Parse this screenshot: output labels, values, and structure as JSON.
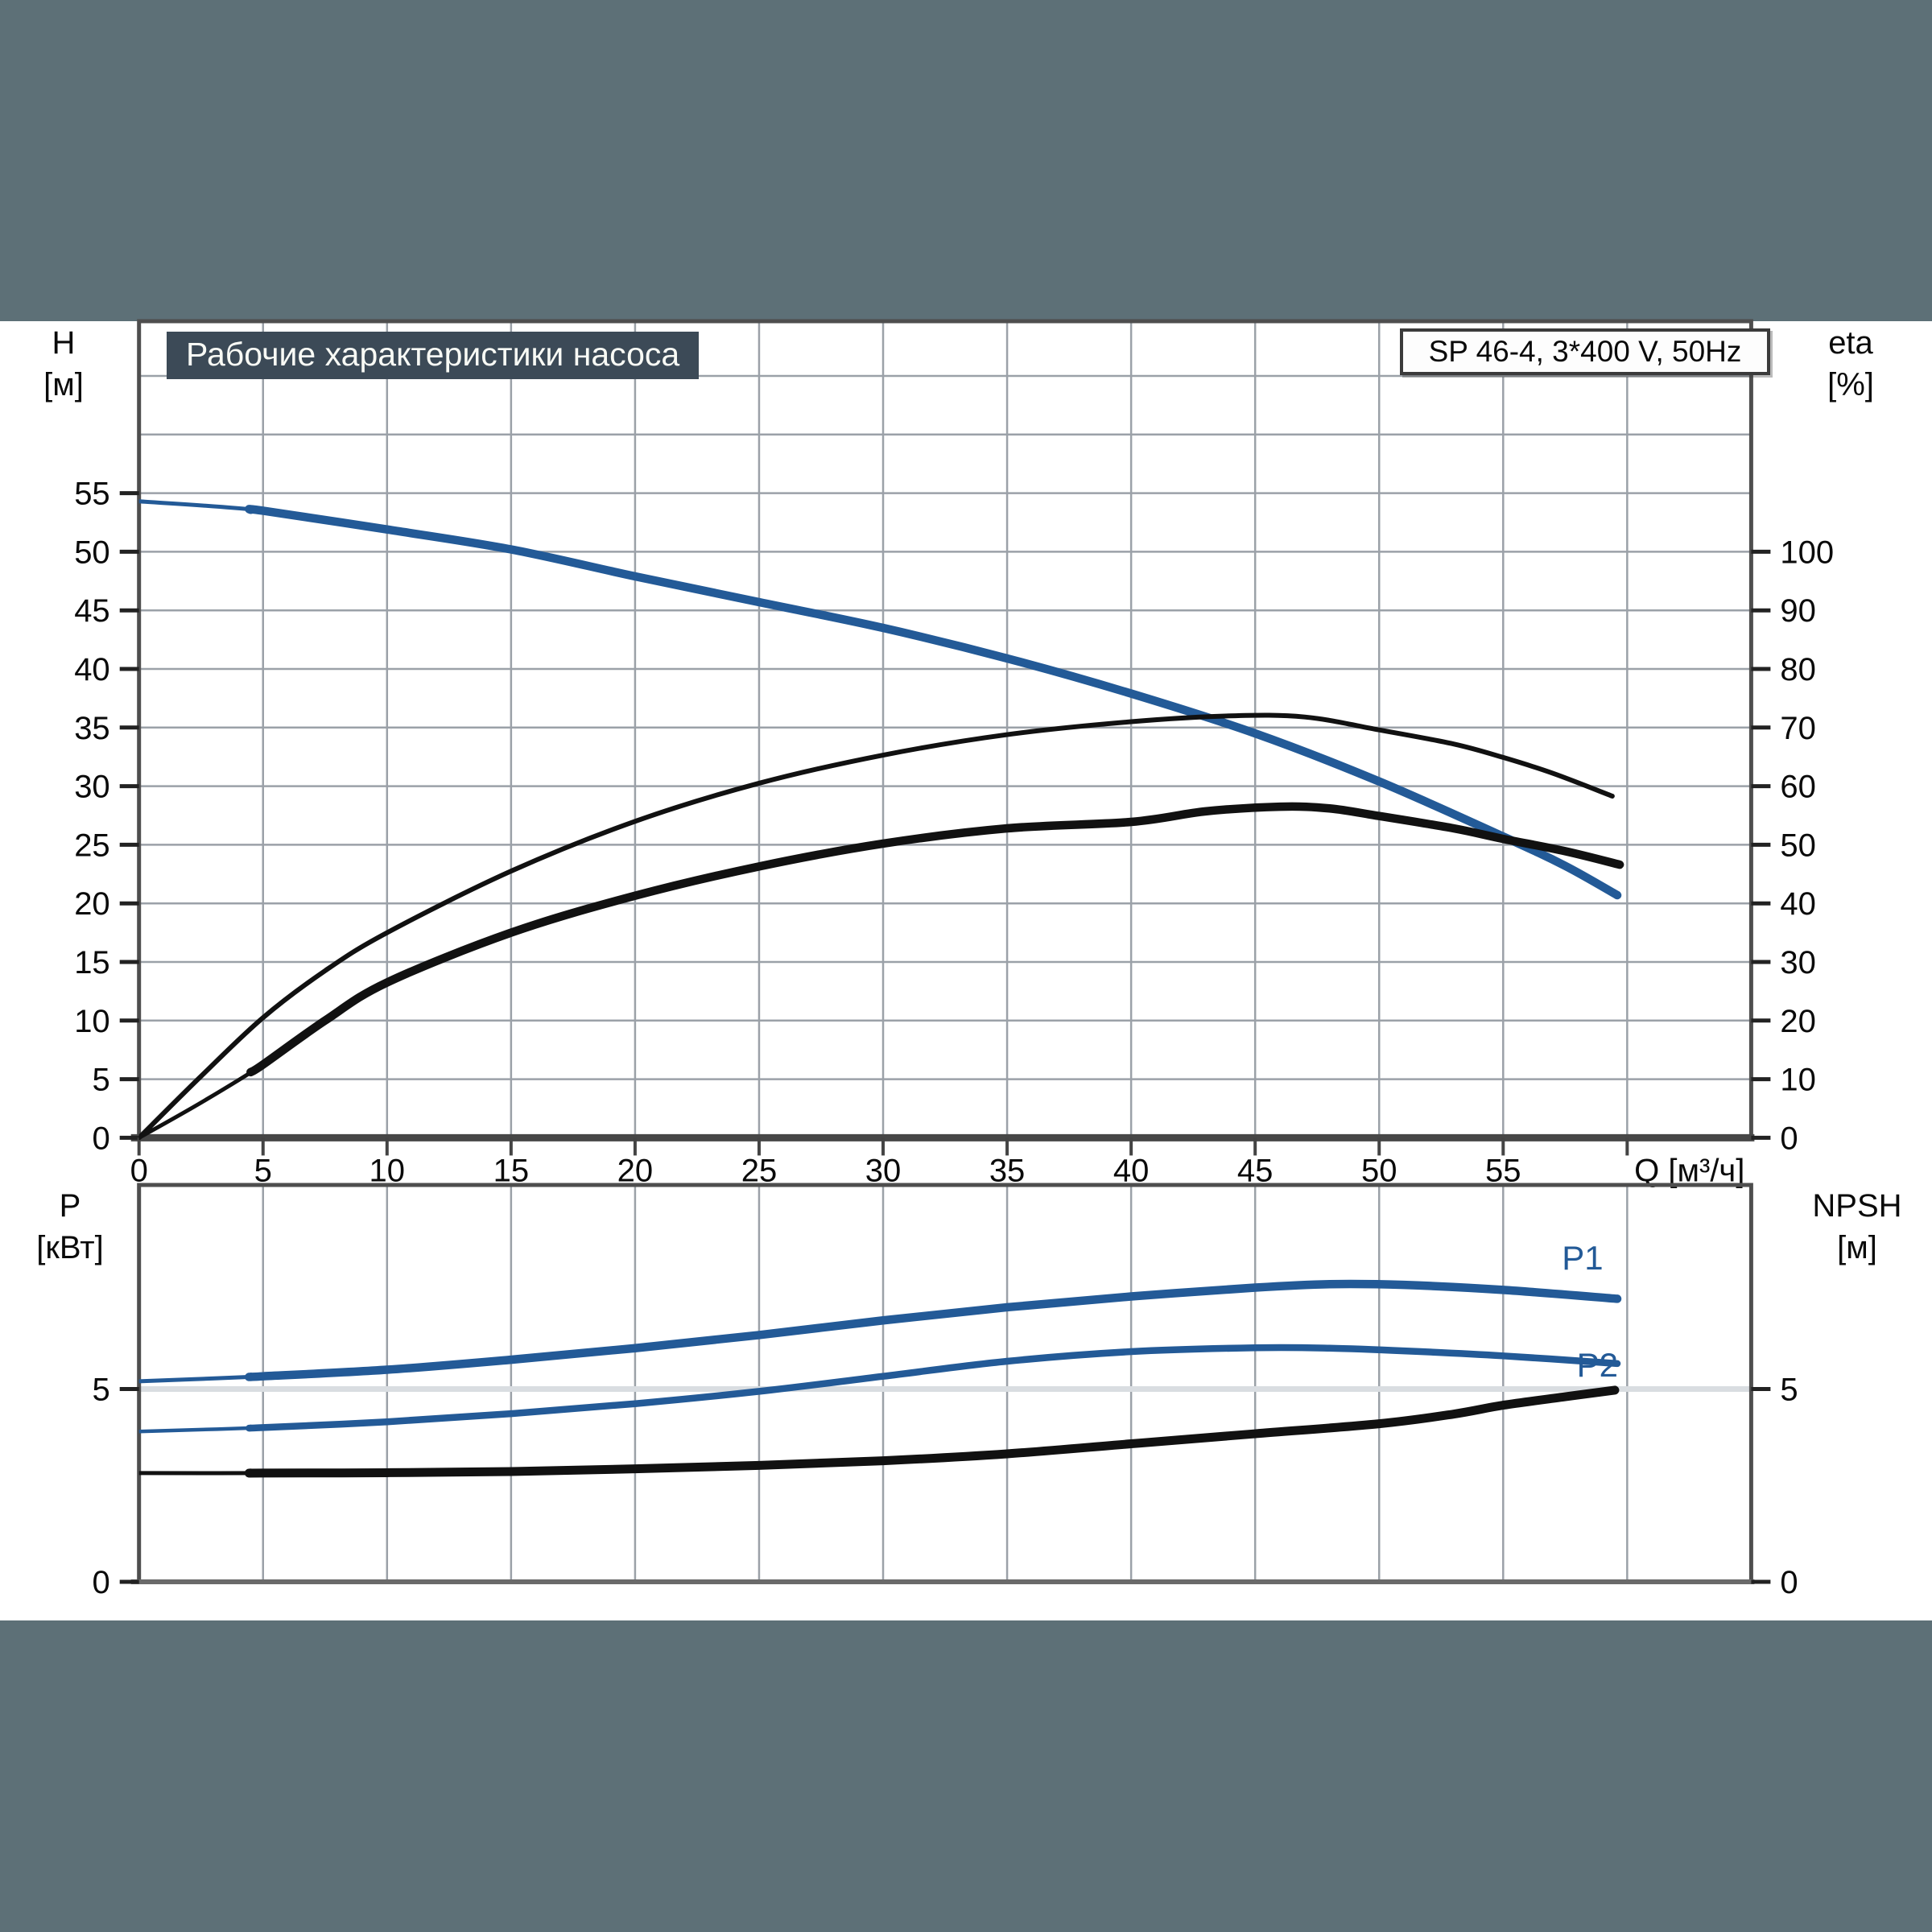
{
  "page": {
    "band_color": "#5d7077",
    "content_background": "#ffffff",
    "grid_color": "#9ba1a8",
    "light_grid_color": "#d9dde1",
    "frame_color": "#4e4e4e",
    "text_color": "#0a0a0a"
  },
  "header": {
    "title": "Рабочие характеристики насоса",
    "title_bg": "#3c4a57",
    "title_color": "#f8faf5",
    "model": "SP 46-4, 3*400 V, 50Hz"
  },
  "axes_labels": {
    "upper_left": [
      "H",
      "[м]"
    ],
    "upper_right": [
      "eta",
      "[%]"
    ],
    "lower_left": [
      "P",
      "[кВт]"
    ],
    "lower_right": [
      "NPSH",
      "[м]"
    ],
    "flow": "Q [м³/ч]"
  },
  "chart_data": [
    {
      "type": "line",
      "id": "upper",
      "title": "Рабочие характеристики насоса",
      "x": {
        "label": "Q [м³/ч]",
        "min": 0,
        "max": 65,
        "grid_step": 5,
        "tick_values": [
          0,
          5,
          10,
          15,
          20,
          25,
          30,
          35,
          40,
          45,
          50,
          55
        ]
      },
      "y_left": {
        "label": "H [м]",
        "min": 0,
        "max": 69.7,
        "grid_step": 5,
        "tick_values": [
          0,
          5,
          10,
          15,
          20,
          25,
          30,
          35,
          40,
          45,
          50,
          55
        ]
      },
      "y_right": {
        "label": "eta [%]",
        "min": 0,
        "max": 139.4,
        "grid_step": 10,
        "tick_values": [
          0,
          10,
          20,
          30,
          40,
          50,
          60,
          70,
          80,
          90,
          100
        ]
      },
      "duty_split_q": 4.5,
      "series": [
        {
          "name": "head-curve",
          "axis": "left",
          "color": "#235a97",
          "style": "duty-thick",
          "thin_width": 5,
          "thick_width": 10.5,
          "points": [
            [
              0,
              54.3
            ],
            [
              5,
              53.5
            ],
            [
              10,
              51.9
            ],
            [
              15,
              50.2
            ],
            [
              20,
              47.9
            ],
            [
              25,
              45.7
            ],
            [
              30,
              43.5
            ],
            [
              35,
              40.9
            ],
            [
              40,
              37.9
            ],
            [
              45,
              34.5
            ],
            [
              50,
              30.4
            ],
            [
              55,
              25.7
            ],
            [
              57.5,
              23.2
            ],
            [
              59.6,
              20.7
            ]
          ]
        },
        {
          "name": "eta-pump-curve",
          "axis": "right",
          "color": "#111111",
          "style": "thin",
          "thin_width": 6,
          "thick_width": 6,
          "points": [
            [
              0,
              0
            ],
            [
              2.5,
              10.5
            ],
            [
              5,
              20.5
            ],
            [
              7.5,
              28.5
            ],
            [
              10,
              35
            ],
            [
              15,
              45.5
            ],
            [
              20,
              54
            ],
            [
              25,
              60.5
            ],
            [
              30,
              65.3
            ],
            [
              35,
              68.8
            ],
            [
              40,
              71
            ],
            [
              44,
              72
            ],
            [
              47,
              71.8
            ],
            [
              50,
              69.6
            ],
            [
              53,
              67.2
            ],
            [
              55,
              64.9
            ],
            [
              57,
              62.2
            ],
            [
              59.4,
              58.3
            ]
          ]
        },
        {
          "name": "eta-total-curve",
          "axis": "right",
          "color": "#111111",
          "style": "duty-thick",
          "thin_width": 5,
          "thick_width": 10.5,
          "points": [
            [
              0,
              0
            ],
            [
              2.5,
              6
            ],
            [
              5,
              12.5
            ],
            [
              7.5,
              20
            ],
            [
              10,
              26.5
            ],
            [
              15,
              35
            ],
            [
              20,
              41.3
            ],
            [
              25,
              46.3
            ],
            [
              30,
              50.2
            ],
            [
              35,
              52.8
            ],
            [
              40,
              53.9
            ],
            [
              43,
              55.7
            ],
            [
              46,
              56.5
            ],
            [
              48,
              56.2
            ],
            [
              50,
              54.9
            ],
            [
              53,
              52.8
            ],
            [
              55,
              51
            ],
            [
              57.5,
              48.9
            ],
            [
              59.7,
              46.6
            ]
          ]
        }
      ]
    },
    {
      "type": "line",
      "id": "lower",
      "x": {
        "min": 0,
        "max": 65,
        "grid_step": 5
      },
      "y_left": {
        "label": "P [кВт]",
        "min": 0,
        "max": 10.25,
        "tick_values": [
          0,
          5
        ],
        "light_grid_values": [
          5
        ]
      },
      "y_right": {
        "label": "NPSH [м]",
        "min": 0,
        "max": 10.25,
        "tick_values": [
          0,
          5
        ]
      },
      "duty_split_q": 4.5,
      "series": [
        {
          "name": "p1-curve",
          "label": "P1",
          "label_at": [
            58.2,
            8.1
          ],
          "axis": "left",
          "color": "#235a97",
          "style": "duty-thick",
          "thin_width": 5,
          "thick_width": 10.5,
          "points": [
            [
              0,
              5.2
            ],
            [
              5,
              5.33
            ],
            [
              10,
              5.5
            ],
            [
              15,
              5.76
            ],
            [
              20,
              6.06
            ],
            [
              25,
              6.4
            ],
            [
              30,
              6.78
            ],
            [
              35,
              7.12
            ],
            [
              40,
              7.4
            ],
            [
              45,
              7.63
            ],
            [
              48,
              7.72
            ],
            [
              51,
              7.7
            ],
            [
              55,
              7.57
            ],
            [
              59.6,
              7.34
            ]
          ]
        },
        {
          "name": "p2-curve",
          "label": "P2",
          "label_at": [
            58.8,
            5.32
          ],
          "axis": "left",
          "color": "#235a97",
          "style": "duty-thick",
          "thin_width": 4.5,
          "thick_width": 8.5,
          "points": [
            [
              0,
              3.9
            ],
            [
              5,
              4.0
            ],
            [
              10,
              4.15
            ],
            [
              15,
              4.36
            ],
            [
              20,
              4.62
            ],
            [
              25,
              4.94
            ],
            [
              30,
              5.33
            ],
            [
              35,
              5.72
            ],
            [
              40,
              5.97
            ],
            [
              45,
              6.07
            ],
            [
              48,
              6.06
            ],
            [
              51,
              5.99
            ],
            [
              55,
              5.86
            ],
            [
              59.6,
              5.66
            ]
          ]
        },
        {
          "name": "npsh-curve",
          "axis": "left",
          "color": "#111111",
          "style": "duty-thick",
          "thin_width": 5,
          "thick_width": 11,
          "points": [
            [
              0,
              2.82
            ],
            [
              5,
              2.82
            ],
            [
              10,
              2.83
            ],
            [
              15,
              2.86
            ],
            [
              20,
              2.93
            ],
            [
              25,
              3.02
            ],
            [
              30,
              3.14
            ],
            [
              35,
              3.32
            ],
            [
              40,
              3.58
            ],
            [
              45,
              3.84
            ],
            [
              50,
              4.1
            ],
            [
              53,
              4.35
            ],
            [
              55,
              4.58
            ],
            [
              57.5,
              4.8
            ],
            [
              59.5,
              4.97
            ]
          ]
        }
      ]
    }
  ]
}
